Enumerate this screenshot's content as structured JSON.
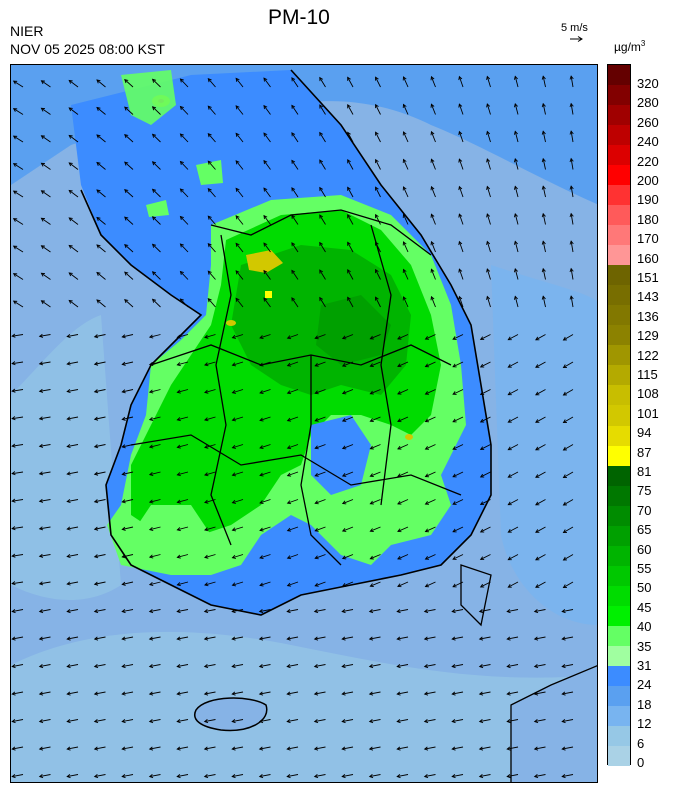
{
  "header": {
    "agency": "NIER",
    "datetime": "NOV 05 2025 08:00 KST",
    "title": "PM-10",
    "wind_reference": "5 m/s",
    "unit_base": "µg/m",
    "unit_exp": "3"
  },
  "legend": {
    "labels": [
      "320",
      "280",
      "260",
      "240",
      "220",
      "200",
      "190",
      "180",
      "170",
      "160",
      "151",
      "143",
      "136",
      "129",
      "122",
      "115",
      "108",
      "101",
      "94",
      "87",
      "81",
      "75",
      "70",
      "65",
      "60",
      "55",
      "50",
      "45",
      "40",
      "35",
      "31",
      "24",
      "18",
      "12",
      "6",
      "0"
    ],
    "colors": [
      "#640000",
      "#820000",
      "#a00000",
      "#be0000",
      "#dc0000",
      "#ff0000",
      "#ff3232",
      "#ff5a5a",
      "#ff7878",
      "#ff9696",
      "#6e6400",
      "#786e00",
      "#827800",
      "#8c8200",
      "#a09600",
      "#b4aa00",
      "#c8be00",
      "#d2c800",
      "#e6dc00",
      "#ffff00",
      "#006400",
      "#007800",
      "#008c00",
      "#00a000",
      "#00b400",
      "#00c800",
      "#00dc00",
      "#00f000",
      "#64ff64",
      "#a0ffa0",
      "#3c8cff",
      "#5aa0f0",
      "#78b4f0",
      "#96c8e6",
      "#aad2e6"
    ]
  },
  "map": {
    "background_color": "#86b3e6",
    "regions_description_colors": {
      "sea_far": "#96c8e6",
      "sea_near": "#78b4f0",
      "coast": "#5aa0f0",
      "low_land": "#3c8cff",
      "moderate_light": "#64ff64",
      "moderate": "#00dc00",
      "moderate_dark": "#00b400",
      "bad": "#d2c800",
      "very_bad": "#ff3232"
    }
  }
}
